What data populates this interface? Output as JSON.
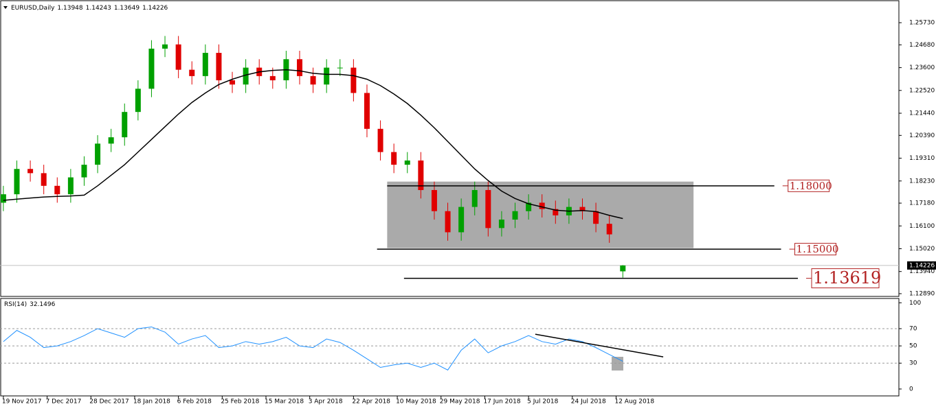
{
  "chart_data": [
    {
      "type": "candlestick",
      "title": "EURUSD,Daily",
      "header_values": [
        1.13948,
        1.14243,
        1.13649,
        1.14226
      ],
      "x": [
        0,
        4,
        8,
        12,
        16,
        20,
        24,
        28,
        32,
        36,
        40,
        44,
        48,
        52,
        56,
        60,
        64,
        68,
        72,
        76,
        80,
        84,
        88,
        92,
        96,
        100,
        104,
        108,
        112,
        116,
        120,
        124,
        128,
        132,
        136,
        140,
        144,
        148,
        152,
        156,
        160,
        164,
        168,
        172,
        176,
        180,
        184
      ],
      "open": [
        1.172,
        1.176,
        1.188,
        1.186,
        1.18,
        1.176,
        1.184,
        1.19,
        1.2,
        1.203,
        1.215,
        1.226,
        1.245,
        1.247,
        1.235,
        1.232,
        1.243,
        1.23,
        1.228,
        1.236,
        1.232,
        1.23,
        1.24,
        1.232,
        1.228,
        1.236,
        1.236,
        1.224,
        1.207,
        1.196,
        1.19,
        1.192,
        1.178,
        1.168,
        1.158,
        1.17,
        1.178,
        1.16,
        1.164,
        1.168,
        1.172,
        1.169,
        1.166,
        1.17,
        1.168,
        1.162,
        1.13948
      ],
      "high": [
        1.18,
        1.192,
        1.192,
        1.19,
        1.184,
        1.188,
        1.194,
        1.204,
        1.207,
        1.219,
        1.23,
        1.249,
        1.251,
        1.251,
        1.239,
        1.247,
        1.247,
        1.234,
        1.24,
        1.24,
        1.236,
        1.244,
        1.244,
        1.236,
        1.24,
        1.24,
        1.24,
        1.228,
        1.211,
        1.2,
        1.196,
        1.196,
        1.182,
        1.172,
        1.174,
        1.182,
        1.182,
        1.168,
        1.172,
        1.176,
        1.176,
        1.173,
        1.174,
        1.174,
        1.172,
        1.166,
        1.14243
      ],
      "low": [
        1.168,
        1.172,
        1.182,
        1.176,
        1.172,
        1.172,
        1.18,
        1.186,
        1.196,
        1.199,
        1.211,
        1.222,
        1.241,
        1.231,
        1.228,
        1.228,
        1.226,
        1.224,
        1.224,
        1.228,
        1.226,
        1.226,
        1.228,
        1.224,
        1.224,
        1.232,
        1.22,
        1.203,
        1.192,
        1.186,
        1.186,
        1.174,
        1.164,
        1.154,
        1.154,
        1.166,
        1.156,
        1.156,
        1.16,
        1.164,
        1.165,
        1.162,
        1.162,
        1.164,
        1.158,
        1.153,
        1.13649
      ],
      "close": [
        1.176,
        1.188,
        1.186,
        1.18,
        1.176,
        1.184,
        1.19,
        1.2,
        1.203,
        1.215,
        1.226,
        1.245,
        1.247,
        1.235,
        1.232,
        1.243,
        1.23,
        1.228,
        1.236,
        1.232,
        1.23,
        1.24,
        1.232,
        1.228,
        1.236,
        1.236,
        1.224,
        1.207,
        1.196,
        1.19,
        1.192,
        1.178,
        1.168,
        1.158,
        1.17,
        1.178,
        1.16,
        1.164,
        1.168,
        1.172,
        1.169,
        1.166,
        1.17,
        1.168,
        1.162,
        1.157,
        1.14226
      ],
      "ma": [
        1.1731,
        1.1737,
        1.1742,
        1.1747,
        1.175,
        1.1752,
        1.1756,
        1.18,
        1.185,
        1.19,
        1.196,
        1.202,
        1.208,
        1.214,
        1.2195,
        1.224,
        1.228,
        1.2305,
        1.2325,
        1.234,
        1.2347,
        1.235,
        1.2345,
        1.2333,
        1.2328,
        1.2328,
        1.2322,
        1.2305,
        1.2275,
        1.2235,
        1.219,
        1.2135,
        1.2075,
        1.201,
        1.1945,
        1.188,
        1.1825,
        1.1775,
        1.174,
        1.1715,
        1.17,
        1.1685,
        1.168,
        1.1683,
        1.1678,
        1.166,
        1.1645
      ],
      "up_color": "#00a000",
      "down_color": "#e00000",
      "ma_color": "#000000",
      "xlim": [
        -1,
        266
      ],
      "ylim": [
        1.1276,
        1.2674
      ],
      "yticks": [
        {
          "value": 1.2573,
          "label": "1.25730"
        },
        {
          "value": 1.2468,
          "label": "1.24680"
        },
        {
          "value": 1.236,
          "label": "1.23600"
        },
        {
          "value": 1.2252,
          "label": "1.22520"
        },
        {
          "value": 1.2144,
          "label": "1.21440"
        },
        {
          "value": 1.2039,
          "label": "1.20390"
        },
        {
          "value": 1.1931,
          "label": "1.19310"
        },
        {
          "value": 1.1823,
          "label": "1.18230"
        },
        {
          "value": 1.1718,
          "label": "1.17180"
        },
        {
          "value": 1.161,
          "label": "1.16100"
        },
        {
          "value": 1.1502,
          "label": "1.15020"
        },
        {
          "value": 1.1394,
          "label": "1.13940"
        },
        {
          "value": 1.1289,
          "label": "1.12890"
        }
      ],
      "current_price": 1.14226,
      "zone": {
        "x": [
          114,
          205
        ],
        "y": [
          1.1505,
          1.182
        ],
        "color": "#aaaaaa"
      },
      "levels": [
        {
          "value": {
            "value": 1.18,
            "label": "1.18000"
          },
          "x": [
            114,
            229
          ]
        },
        {
          "value": {
            "value": 1.15,
            "label": "1.15000"
          },
          "x": [
            111,
            231
          ]
        },
        {
          "value": 1.13619,
          "x": [
            119,
            236
          ]
        }
      ]
    },
    {
      "type": "line",
      "title": "RSI(14)",
      "current": 32.1496,
      "color": "#1e90ff",
      "x": [
        0,
        4,
        8,
        12,
        16,
        20,
        24,
        28,
        32,
        36,
        40,
        44,
        48,
        52,
        56,
        60,
        64,
        68,
        72,
        76,
        80,
        84,
        88,
        92,
        96,
        100,
        104,
        108,
        112,
        116,
        120,
        124,
        128,
        132,
        136,
        140,
        144,
        148,
        152,
        156,
        160,
        164,
        168,
        172,
        176,
        180,
        184
      ],
      "values": [
        55,
        68,
        60,
        48,
        50,
        55,
        62,
        70,
        65,
        60,
        70,
        72,
        66,
        52,
        58,
        62,
        48,
        50,
        55,
        52,
        55,
        60,
        50,
        48,
        58,
        54,
        45,
        35,
        25,
        28,
        30,
        25,
        30,
        22,
        45,
        58,
        42,
        50,
        55,
        62,
        55,
        52,
        58,
        55,
        48,
        40,
        32.1496
      ],
      "xlim": [
        -1,
        266
      ],
      "ylim": [
        -8,
        105
      ],
      "yticks": [
        0,
        30,
        50,
        70,
        100
      ],
      "trendline": {
        "x": [
          158,
          196
        ],
        "values": [
          63.5,
          37.3
        ]
      },
      "xticks": [
        {
          "value": 0,
          "label": "19 Nov 2017"
        },
        {
          "value": 13,
          "label": "7 Dec 2017"
        },
        {
          "value": 26,
          "label": "28 Dec 2017"
        },
        {
          "value": 39,
          "label": "18 Jan 2018"
        },
        {
          "value": 52,
          "label": "6 Feb 2018"
        },
        {
          "value": 65,
          "label": "25 Feb 2018"
        },
        {
          "value": 78,
          "label": "15 Mar 2018"
        },
        {
          "value": 91,
          "label": "3 Apr 2018"
        },
        {
          "value": 104,
          "label": "22 Apr 2018"
        },
        {
          "value": 117,
          "label": "10 May 2018"
        },
        {
          "value": 130,
          "label": "29 May 2018"
        },
        {
          "value": 143,
          "label": "17 Jun 2018"
        },
        {
          "value": 156,
          "label": "5 Jul 2018"
        },
        {
          "value": 169,
          "label": "24 Jul 2018"
        },
        {
          "value": 182,
          "label": "12 Aug 2018"
        }
      ]
    }
  ]
}
